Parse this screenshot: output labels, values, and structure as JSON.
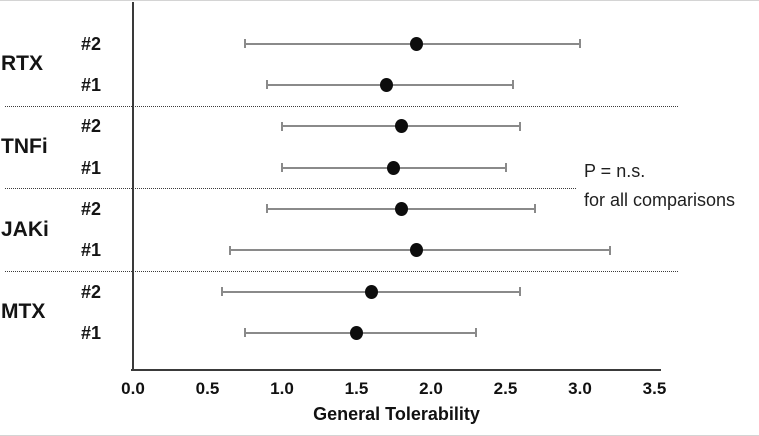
{
  "chart_data": {
    "type": "scatter",
    "subtype": "forest-dot-plot-with-error-bars",
    "title": "",
    "xlabel": "General Tolerability",
    "ylabel": "",
    "xlim": [
      0.0,
      3.5
    ],
    "xticks": [
      "0.0",
      "0.5",
      "1.0",
      "1.5",
      "2.0",
      "2.5",
      "3.0",
      "3.5"
    ],
    "xtick_values": [
      0.0,
      0.5,
      1.0,
      1.5,
      2.0,
      2.5,
      3.0,
      3.5
    ],
    "grid": false,
    "legend": null,
    "annotation": {
      "lines": [
        "P = n.s.",
        "for all comparisons"
      ]
    },
    "groups": [
      {
        "name": "RTX",
        "rows": [
          {
            "label": "#2",
            "value": 1.9,
            "ci_low": 0.75,
            "ci_high": 3.0
          },
          {
            "label": "#1",
            "value": 1.7,
            "ci_low": 0.9,
            "ci_high": 2.55
          }
        ]
      },
      {
        "name": "TNFi",
        "rows": [
          {
            "label": "#2",
            "value": 1.8,
            "ci_low": 1.0,
            "ci_high": 2.6
          },
          {
            "label": "#1",
            "value": 1.75,
            "ci_low": 1.0,
            "ci_high": 2.5
          }
        ]
      },
      {
        "name": "JAKi",
        "rows": [
          {
            "label": "#2",
            "value": 1.8,
            "ci_low": 0.9,
            "ci_high": 2.7
          },
          {
            "label": "#1",
            "value": 1.9,
            "ci_low": 0.65,
            "ci_high": 3.2
          }
        ]
      },
      {
        "name": "MTX",
        "rows": [
          {
            "label": "#2",
            "value": 1.6,
            "ci_low": 0.6,
            "ci_high": 2.6
          },
          {
            "label": "#1",
            "value": 1.5,
            "ci_low": 0.75,
            "ci_high": 2.3
          }
        ]
      }
    ],
    "colors": {
      "dot": "#0d0d0d",
      "error_bar": "#8a8a8a",
      "axis": "#3a3a3a",
      "separator": "#3c3c3c",
      "text": "#141414"
    }
  }
}
